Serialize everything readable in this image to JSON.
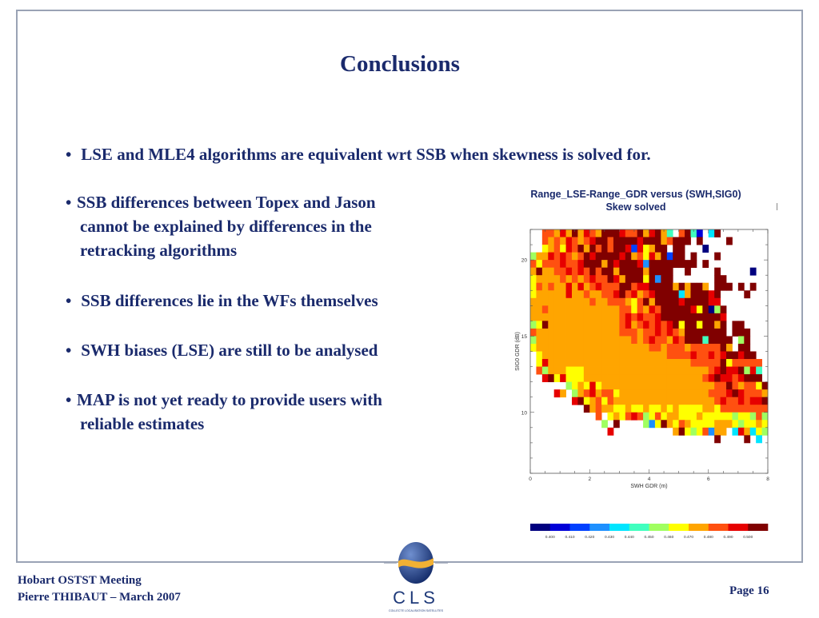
{
  "slide": {
    "title": "Conclusions",
    "bullets": [
      {
        "lines": [
          "LSE and MLE4 algorithms are equivalent wrt SSB when skewness is solved for."
        ]
      },
      {
        "lines": [
          "SSB differences between Topex and Jason",
          "cannot be explained by differences in the",
          "retracking algorithms"
        ]
      },
      {
        "lines": [
          "SSB differences lie in the WFs themselves"
        ]
      },
      {
        "lines": [
          "SWH biases (LSE) are still to be analysed"
        ]
      },
      {
        "lines": [
          "MAP is not yet ready to provide users with",
          "reliable estimates"
        ]
      }
    ],
    "bullet_char": "•"
  },
  "footer": {
    "line1": "Hobart OSTST Meeting",
    "line2": "Pierre THIBAUT – March 2007",
    "page": "Page 16",
    "logo_text": "CLS",
    "logo_subtext": "COLLECTE LOCALISATION SATELLITES"
  },
  "colors": {
    "text": "#1a2a6c",
    "frame": "#9aa3b5",
    "logo_blue": "#1f3a7a",
    "logo_gold": "#f2b134"
  },
  "chart_data": {
    "type": "heatmap",
    "title": "Range_LSE-Range_GDR versus (SWH,SIG0)",
    "subtitle": "Skew solved",
    "xlabel": "SWH GDR (m)",
    "ylabel": "SIG0 GDR (dB)",
    "xlim": [
      0,
      8
    ],
    "ylim": [
      6,
      22
    ],
    "xticks": [
      0,
      2,
      4,
      6,
      8
    ],
    "yticks": [
      10,
      15,
      20
    ],
    "x_bin": 0.2,
    "y_bin": 0.5,
    "y_top": 22,
    "colorbar": {
      "ticks": [
        "0.400",
        "0.410",
        "0.420",
        "0.430",
        "0.440",
        "0.450",
        "0.460",
        "0.470",
        "0.480",
        "0.490",
        "0.500"
      ],
      "colors": [
        "#00007f",
        "#0000d8",
        "#0040ff",
        "#1e90ff",
        "#00e5ff",
        "#40ffbf",
        "#a0ff60",
        "#ffff00",
        "#ffa500",
        "#ff5010",
        "#e60000",
        "#800000"
      ]
    },
    "grid_note": "rows from top (y=22) downward in 0.5 dB bins; columns from x=0 in 0.2 m bins; values are colorbar bin indices 0-11, -1 = no data",
    "rows": [
      [
        -1,
        -1,
        9,
        9,
        8,
        10,
        8,
        11,
        8,
        10,
        9,
        8,
        11,
        11,
        11,
        10,
        9,
        9,
        11,
        8,
        10,
        11,
        8,
        5,
        -1,
        9,
        11,
        5,
        1,
        -1,
        4,
        11,
        -1,
        -1,
        -1,
        -1,
        -1,
        -1,
        -1,
        -1
      ],
      [
        -1,
        -1,
        9,
        8,
        9,
        8,
        10,
        9,
        8,
        9,
        10,
        11,
        11,
        9,
        11,
        11,
        11,
        11,
        10,
        11,
        11,
        11,
        8,
        9,
        11,
        11,
        11,
        -1,
        11,
        -1,
        -1,
        -1,
        -1,
        11,
        -1,
        -1,
        -1,
        -1,
        -1,
        -1
      ],
      [
        -1,
        -1,
        7,
        8,
        9,
        7,
        10,
        9,
        11,
        8,
        11,
        9,
        11,
        9,
        11,
        11,
        10,
        2,
        10,
        7,
        8,
        11,
        11,
        -1,
        11,
        11,
        -1,
        -1,
        -1,
        0,
        -1,
        -1,
        -1,
        -1,
        -1,
        -1,
        -1,
        -1,
        -1,
        -1
      ],
      [
        6,
        8,
        8,
        10,
        9,
        10,
        9,
        8,
        9,
        11,
        10,
        11,
        11,
        11,
        11,
        10,
        11,
        8,
        9,
        7,
        10,
        8,
        11,
        2,
        11,
        11,
        -1,
        11,
        -1,
        -1,
        -1,
        11,
        -1,
        -1,
        -1,
        -1,
        -1,
        -1,
        -1,
        -1
      ],
      [
        9,
        7,
        9,
        9,
        9,
        10,
        9,
        9,
        10,
        11,
        11,
        11,
        8,
        11,
        10,
        11,
        11,
        11,
        10,
        3,
        11,
        11,
        11,
        11,
        11,
        11,
        11,
        11,
        -1,
        11,
        -1,
        -1,
        -1,
        -1,
        -1,
        -1,
        -1,
        -1,
        -1,
        -1
      ],
      [
        8,
        11,
        8,
        8,
        9,
        9,
        10,
        9,
        10,
        9,
        11,
        9,
        11,
        11,
        8,
        11,
        11,
        11,
        11,
        8,
        11,
        11,
        11,
        11,
        -1,
        -1,
        11,
        -1,
        -1,
        -1,
        -1,
        11,
        -1,
        -1,
        -1,
        -1,
        -1,
        0,
        -1,
        -1
      ],
      [
        7,
        8,
        8,
        8,
        8,
        9,
        8,
        9,
        8,
        9,
        10,
        9,
        9,
        11,
        10,
        8,
        11,
        11,
        11,
        7,
        11,
        3,
        11,
        11,
        -1,
        -1,
        -1,
        -1,
        -1,
        -1,
        -1,
        11,
        11,
        -1,
        -1,
        -1,
        -1,
        -1,
        -1,
        -1
      ],
      [
        7,
        9,
        8,
        9,
        8,
        8,
        10,
        8,
        10,
        8,
        9,
        10,
        9,
        9,
        9,
        11,
        11,
        9,
        10,
        10,
        11,
        11,
        11,
        11,
        8,
        11,
        8,
        11,
        11,
        8,
        -1,
        11,
        11,
        11,
        -1,
        11,
        -1,
        11,
        -1,
        -1
      ],
      [
        7,
        8,
        8,
        8,
        8,
        8,
        10,
        8,
        8,
        9,
        8,
        8,
        9,
        9,
        10,
        11,
        9,
        10,
        8,
        9,
        10,
        11,
        11,
        11,
        11,
        4,
        8,
        11,
        11,
        11,
        10,
        11,
        -1,
        -1,
        -1,
        -1,
        11,
        -1,
        -1,
        -1
      ],
      [
        8,
        8,
        8,
        8,
        8,
        8,
        8,
        8,
        8,
        8,
        9,
        8,
        8,
        9,
        9,
        9,
        8,
        7,
        9,
        11,
        8,
        11,
        11,
        11,
        11,
        10,
        11,
        11,
        11,
        11,
        10,
        10,
        -1,
        -1,
        -1,
        -1,
        -1,
        -1,
        -1,
        -1
      ],
      [
        8,
        8,
        9,
        8,
        8,
        8,
        8,
        8,
        8,
        8,
        8,
        8,
        8,
        8,
        8,
        9,
        9,
        7,
        9,
        8,
        10,
        9,
        11,
        11,
        11,
        11,
        11,
        10,
        7,
        11,
        0,
        6,
        11,
        -1,
        -1,
        -1,
        -1,
        -1,
        -1,
        -1
      ],
      [
        8,
        8,
        8,
        8,
        8,
        8,
        8,
        8,
        8,
        8,
        8,
        8,
        8,
        8,
        8,
        9,
        10,
        9,
        10,
        9,
        9,
        10,
        11,
        11,
        11,
        11,
        11,
        11,
        11,
        11,
        11,
        11,
        10,
        -1,
        -1,
        -1,
        -1,
        -1,
        -1,
        -1
      ],
      [
        6,
        7,
        11,
        8,
        8,
        8,
        8,
        8,
        8,
        8,
        8,
        8,
        8,
        8,
        8,
        9,
        10,
        8,
        9,
        10,
        9,
        10,
        9,
        10,
        11,
        7,
        11,
        11,
        7,
        11,
        11,
        8,
        11,
        -1,
        11,
        11,
        -1,
        -1,
        -1,
        -1
      ],
      [
        9,
        8,
        8,
        8,
        8,
        8,
        8,
        8,
        8,
        8,
        8,
        8,
        8,
        8,
        8,
        9,
        9,
        9,
        8,
        9,
        9,
        10,
        9,
        10,
        9,
        8,
        11,
        11,
        11,
        11,
        11,
        11,
        11,
        -1,
        11,
        11,
        11,
        -1,
        -1,
        -1
      ],
      [
        6,
        8,
        8,
        8,
        8,
        8,
        8,
        8,
        8,
        8,
        8,
        8,
        8,
        8,
        8,
        8,
        8,
        9,
        8,
        9,
        10,
        9,
        9,
        8,
        10,
        9,
        11,
        11,
        11,
        5,
        11,
        11,
        11,
        11,
        -1,
        6,
        11,
        -1,
        -1,
        -1
      ],
      [
        7,
        8,
        8,
        8,
        8,
        8,
        8,
        8,
        8,
        8,
        8,
        8,
        8,
        8,
        8,
        8,
        8,
        8,
        8,
        8,
        9,
        9,
        8,
        9,
        9,
        9,
        8,
        9,
        9,
        9,
        9,
        9,
        11,
        8,
        -1,
        11,
        11,
        -1,
        -1,
        -1
      ],
      [
        -1,
        7,
        8,
        8,
        8,
        8,
        8,
        8,
        8,
        8,
        8,
        8,
        8,
        8,
        8,
        8,
        8,
        8,
        8,
        8,
        8,
        8,
        8,
        9,
        9,
        9,
        9,
        10,
        9,
        9,
        10,
        9,
        10,
        11,
        11,
        10,
        11,
        11,
        -1,
        -1
      ],
      [
        -1,
        7,
        10,
        8,
        8,
        8,
        8,
        8,
        8,
        8,
        8,
        8,
        8,
        8,
        8,
        8,
        8,
        8,
        8,
        8,
        8,
        8,
        8,
        8,
        8,
        8,
        8,
        9,
        9,
        9,
        9,
        9,
        11,
        7,
        9,
        9,
        9,
        9,
        9,
        -1
      ],
      [
        -1,
        9,
        6,
        8,
        8,
        8,
        7,
        7,
        7,
        8,
        8,
        8,
        8,
        8,
        8,
        8,
        8,
        8,
        8,
        8,
        8,
        8,
        8,
        8,
        8,
        8,
        8,
        8,
        8,
        8,
        9,
        10,
        11,
        10,
        10,
        11,
        6,
        10,
        5,
        -1
      ],
      [
        -1,
        -1,
        10,
        11,
        7,
        10,
        7,
        7,
        7,
        8,
        8,
        8,
        8,
        8,
        8,
        8,
        8,
        8,
        8,
        8,
        8,
        8,
        8,
        8,
        8,
        8,
        8,
        8,
        8,
        9,
        10,
        11,
        10,
        10,
        9,
        10,
        11,
        11,
        11,
        -1
      ],
      [
        -1,
        -1,
        -1,
        -1,
        -1,
        -1,
        6,
        7,
        8,
        7,
        10,
        7,
        8,
        8,
        8,
        8,
        8,
        8,
        8,
        8,
        8,
        8,
        8,
        8,
        8,
        8,
        8,
        8,
        8,
        8,
        8,
        9,
        9,
        11,
        9,
        8,
        9,
        9,
        7,
        11
      ],
      [
        -1,
        -1,
        -1,
        -1,
        10,
        8,
        -1,
        6,
        8,
        9,
        10,
        8,
        9,
        9,
        7,
        8,
        8,
        8,
        8,
        8,
        8,
        8,
        8,
        8,
        8,
        8,
        8,
        8,
        8,
        8,
        9,
        9,
        9,
        10,
        11,
        10,
        9,
        9,
        9,
        8
      ],
      [
        -1,
        -1,
        -1,
        -1,
        -1,
        -1,
        -1,
        10,
        11,
        7,
        8,
        9,
        7,
        9,
        8,
        8,
        8,
        8,
        8,
        8,
        8,
        8,
        8,
        8,
        8,
        8,
        8,
        8,
        8,
        8,
        8,
        9,
        10,
        9,
        9,
        10,
        9,
        10,
        10,
        11
      ],
      [
        -1,
        -1,
        -1,
        -1,
        -1,
        -1,
        -1,
        -1,
        -1,
        11,
        8,
        9,
        8,
        8,
        7,
        7,
        8,
        7,
        7,
        8,
        7,
        7,
        8,
        7,
        8,
        7,
        7,
        7,
        7,
        8,
        8,
        7,
        9,
        9,
        9,
        9,
        9,
        9,
        9,
        9
      ],
      [
        -1,
        -1,
        -1,
        -1,
        -1,
        -1,
        -1,
        -1,
        -1,
        -1,
        -1,
        9,
        -1,
        7,
        8,
        7,
        9,
        10,
        9,
        6,
        7,
        9,
        7,
        8,
        8,
        7,
        7,
        7,
        8,
        7,
        7,
        7,
        7,
        7,
        6,
        7,
        7,
        6,
        9,
        6
      ],
      [
        -1,
        -1,
        -1,
        -1,
        -1,
        -1,
        -1,
        -1,
        -1,
        -1,
        -1,
        -1,
        6,
        -1,
        11,
        -1,
        -1,
        -1,
        -1,
        6,
        3,
        7,
        11,
        8,
        7,
        9,
        8,
        7,
        7,
        7,
        7,
        8,
        8,
        8,
        7,
        6,
        7,
        7,
        8,
        7
      ],
      [
        -1,
        -1,
        -1,
        -1,
        -1,
        -1,
        -1,
        -1,
        -1,
        -1,
        -1,
        -1,
        -1,
        10,
        -1,
        -1,
        -1,
        -1,
        -1,
        -1,
        -1,
        -1,
        -1,
        -1,
        8,
        11,
        7,
        6,
        7,
        9,
        3,
        8,
        8,
        -1,
        4,
        10,
        8,
        4,
        7,
        6
      ],
      [
        -1,
        -1,
        -1,
        -1,
        -1,
        -1,
        -1,
        -1,
        -1,
        -1,
        -1,
        -1,
        -1,
        -1,
        -1,
        -1,
        -1,
        -1,
        -1,
        -1,
        -1,
        -1,
        -1,
        -1,
        -1,
        -1,
        -1,
        -1,
        -1,
        -1,
        -1,
        11,
        -1,
        -1,
        -1,
        -1,
        11,
        -1,
        4,
        -1
      ]
    ]
  }
}
